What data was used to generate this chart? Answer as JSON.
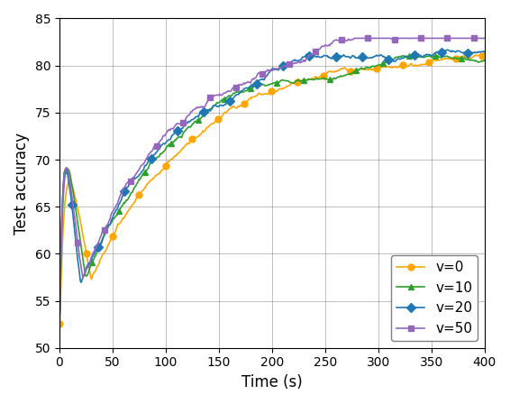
{
  "xlabel": "Time (s)",
  "ylabel": "Test accuracy",
  "xlim": [
    0,
    400
  ],
  "ylim": [
    50,
    85
  ],
  "yticks": [
    50,
    55,
    60,
    65,
    70,
    75,
    80,
    85
  ],
  "xticks": [
    0,
    50,
    100,
    150,
    200,
    250,
    300,
    350,
    400
  ],
  "series": [
    {
      "label": "v=0",
      "color": "#FFA500",
      "marker": "o",
      "markersize": 5
    },
    {
      "label": "v=10",
      "color": "#2ca02c",
      "marker": "^",
      "markersize": 5
    },
    {
      "label": "v=20",
      "color": "#1f77b4",
      "marker": "D",
      "markersize": 5
    },
    {
      "label": "v=50",
      "color": "#9467bd",
      "marker": "s",
      "markersize": 5
    }
  ],
  "legend_loc": "lower right",
  "figsize": [
    5.66,
    4.48
  ],
  "dpi": 100
}
